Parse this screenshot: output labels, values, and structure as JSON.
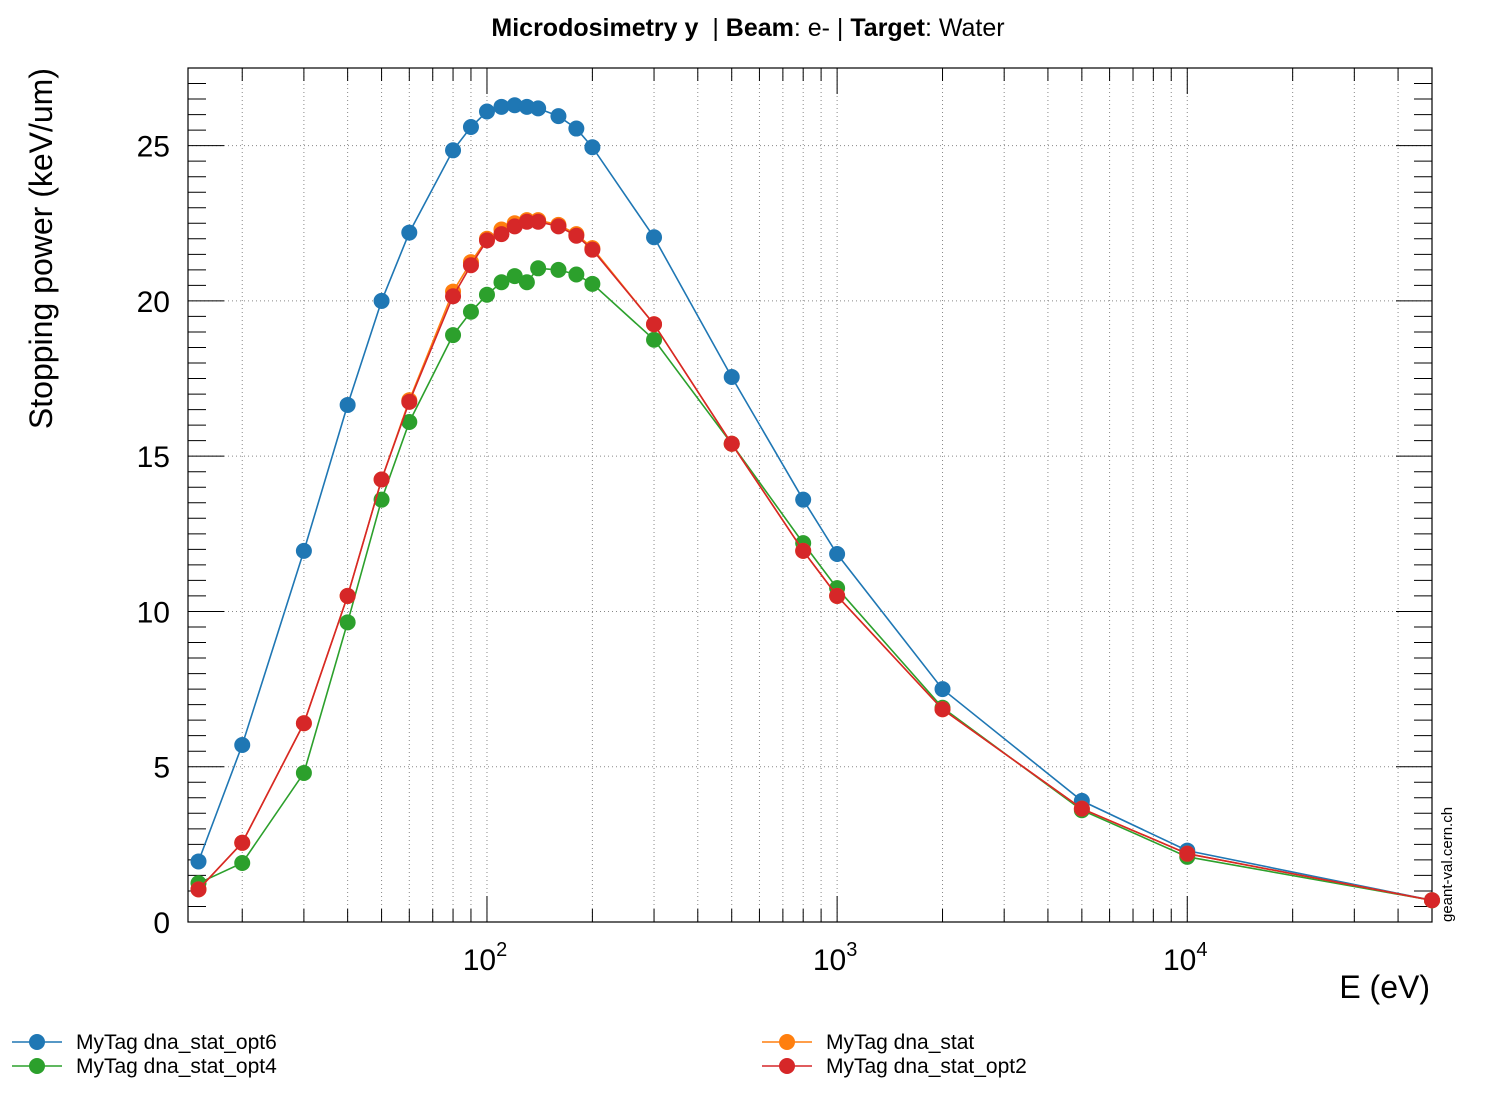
{
  "title": {
    "part1_bold": "Microdosimetry y",
    "part2": "  | ",
    "part3_bold": "Beam",
    "part4": ": e- | ",
    "part5_bold": "Target",
    "part6": ": Water"
  },
  "watermark": "geant-val.cern.ch",
  "chart_data": {
    "type": "line",
    "xlabel": "E (eV)",
    "ylabel": "Stopping power (keV/um)",
    "xscale": "log",
    "xlim": [
      14,
      50000
    ],
    "ylim": [
      0,
      27.5
    ],
    "grid": true,
    "legend_position": "bottom",
    "x_tick_labels": [
      {
        "value": 100,
        "base": "10",
        "exp": "2"
      },
      {
        "value": 1000,
        "base": "10",
        "exp": "3"
      },
      {
        "value": 10000,
        "base": "10",
        "exp": "4"
      }
    ],
    "y_tick_labels": [
      {
        "value": 0,
        "label": "0"
      },
      {
        "value": 5,
        "label": "5"
      },
      {
        "value": 10,
        "label": "10"
      },
      {
        "value": 15,
        "label": "15"
      },
      {
        "value": 20,
        "label": "20"
      },
      {
        "value": 25,
        "label": "25"
      }
    ],
    "series": [
      {
        "name": "MyTag dna_stat_opt6",
        "color": "#1f77b4",
        "x": [
          15,
          20,
          30,
          40,
          50,
          60,
          80,
          90,
          100,
          110,
          120,
          130,
          140,
          160,
          180,
          200,
          300,
          500,
          800,
          1000,
          2000,
          5000,
          10000,
          50000
        ],
        "y": [
          1.95,
          5.7,
          11.95,
          16.65,
          20.0,
          22.2,
          24.85,
          25.6,
          26.1,
          26.25,
          26.3,
          26.25,
          26.2,
          25.95,
          25.55,
          24.95,
          22.05,
          17.55,
          13.6,
          11.85,
          7.5,
          3.9,
          2.3,
          0.7
        ]
      },
      {
        "name": "MyTag dna_stat_opt4",
        "color": "#2ca02c",
        "x": [
          15,
          20,
          30,
          40,
          50,
          60,
          80,
          90,
          100,
          110,
          120,
          130,
          140,
          160,
          180,
          200,
          300,
          500,
          800,
          1000,
          2000,
          5000,
          10000,
          50000
        ],
        "y": [
          1.25,
          1.9,
          4.8,
          9.65,
          13.6,
          16.1,
          18.9,
          19.65,
          20.2,
          20.6,
          20.8,
          20.6,
          21.05,
          21.0,
          20.85,
          20.55,
          18.75,
          15.4,
          12.2,
          10.75,
          6.9,
          3.6,
          2.1,
          0.7
        ]
      },
      {
        "name": "MyTag dna_stat",
        "color": "#ff7f0e",
        "x": [
          15,
          20,
          30,
          40,
          50,
          60,
          80,
          90,
          100,
          110,
          120,
          130,
          140,
          160,
          180,
          200,
          300,
          500,
          800,
          1000,
          2000,
          5000,
          10000,
          50000
        ],
        "y": [
          1.05,
          2.55,
          6.4,
          10.5,
          14.25,
          16.8,
          20.3,
          21.25,
          22.0,
          22.3,
          22.5,
          22.6,
          22.6,
          22.45,
          22.15,
          21.7,
          19.25,
          15.4,
          11.95,
          10.5,
          6.85,
          3.65,
          2.2,
          0.7
        ]
      },
      {
        "name": "MyTag dna_stat_opt2",
        "color": "#d62728",
        "x": [
          15,
          20,
          30,
          40,
          50,
          60,
          80,
          90,
          100,
          110,
          120,
          130,
          140,
          160,
          180,
          200,
          300,
          500,
          800,
          1000,
          2000,
          5000,
          10000,
          50000
        ],
        "y": [
          1.05,
          2.55,
          6.4,
          10.5,
          14.25,
          16.75,
          20.15,
          21.15,
          21.95,
          22.15,
          22.4,
          22.55,
          22.55,
          22.4,
          22.1,
          21.65,
          19.25,
          15.4,
          11.95,
          10.5,
          6.85,
          3.65,
          2.2,
          0.7
        ]
      }
    ]
  }
}
